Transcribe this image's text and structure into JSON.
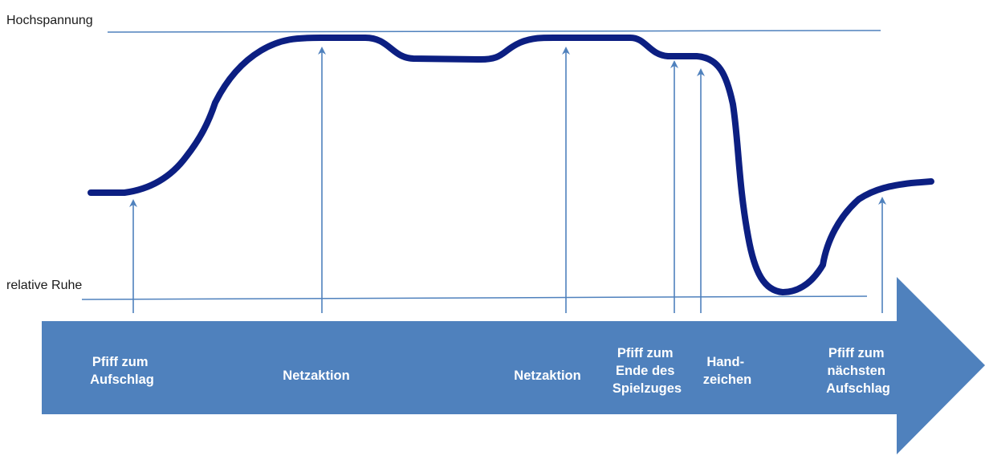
{
  "levels": {
    "top_label": "Hochspannung",
    "bottom_label": "relative Ruhe"
  },
  "colors": {
    "tension_curve": "#0c1f82",
    "guide_lines": "#4f81bd",
    "timeline_arrow": "#4f81bd",
    "event_text": "#ffffff"
  },
  "events": [
    {
      "id": "serve-whistle",
      "lines": [
        "Pfiff zum",
        "Aufschlag"
      ]
    },
    {
      "id": "net-action-1",
      "lines": [
        "Netzaktion"
      ]
    },
    {
      "id": "net-action-2",
      "lines": [
        "Netzaktion"
      ]
    },
    {
      "id": "end-whistle",
      "lines": [
        "Pfiff zum",
        "Ende des",
        "Spielzuges"
      ]
    },
    {
      "id": "hand-signal",
      "lines": [
        "Hand-",
        "zeichen"
      ]
    },
    {
      "id": "next-serve-whistle",
      "lines": [
        "Pfiff zum",
        "nächsten",
        "Aufschlag"
      ]
    }
  ]
}
